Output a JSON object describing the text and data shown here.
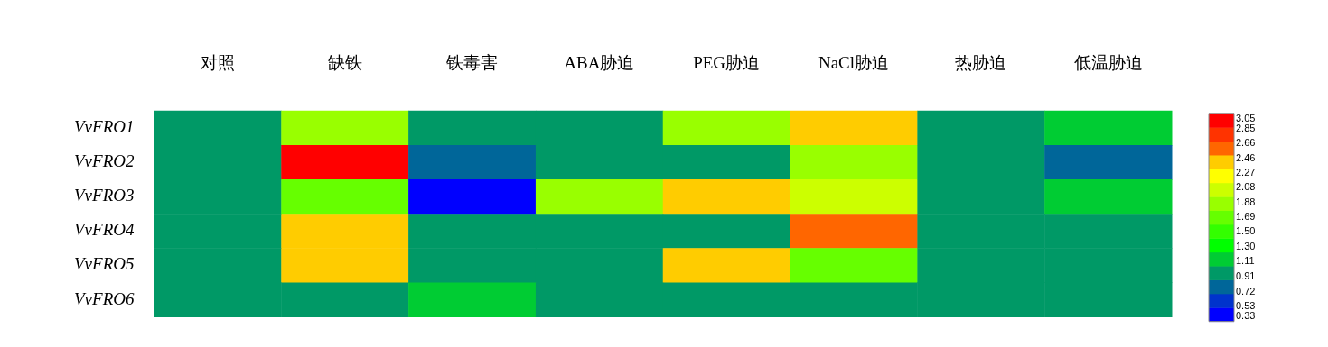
{
  "chart_data": {
    "type": "heatmap",
    "categories": [
      "对照",
      "缺铁",
      "铁毒害",
      "ABA胁迫",
      "PEG胁迫",
      "NaCl胁迫",
      "热胁迫",
      "低温胁迫"
    ],
    "y_categories": [
      "VvFRO1",
      "VvFRO2",
      "VvFRO3",
      "VvFRO4",
      "VvFRO5",
      "VvFRO6"
    ],
    "cells": [
      [
        1.0,
        1.9,
        1.0,
        1.0,
        1.9,
        2.4,
        1.0,
        1.15
      ],
      [
        1.0,
        3.0,
        0.8,
        1.0,
        1.0,
        1.9,
        1.0,
        0.8
      ],
      [
        1.0,
        1.7,
        0.4,
        1.9,
        2.4,
        2.05,
        1.0,
        1.15
      ],
      [
        1.0,
        2.4,
        1.0,
        1.0,
        1.0,
        2.6,
        1.0,
        1.0
      ],
      [
        1.0,
        2.4,
        1.0,
        1.0,
        2.4,
        1.7,
        1.0,
        1.0
      ],
      [
        1.0,
        1.0,
        1.15,
        1.0,
        1.0,
        1.0,
        1.0,
        1.0
      ]
    ],
    "clim": [
      0.33,
      3.05
    ],
    "cticks": [
      3.05,
      2.85,
      2.66,
      2.46,
      2.27,
      2.08,
      1.88,
      1.69,
      {
        "value": 1.5,
        "label": "1.50"
      },
      {
        "value": 1.3,
        "label": "1.30"
      },
      1.11,
      0.91,
      0.72,
      0.53,
      0.33
    ]
  }
}
